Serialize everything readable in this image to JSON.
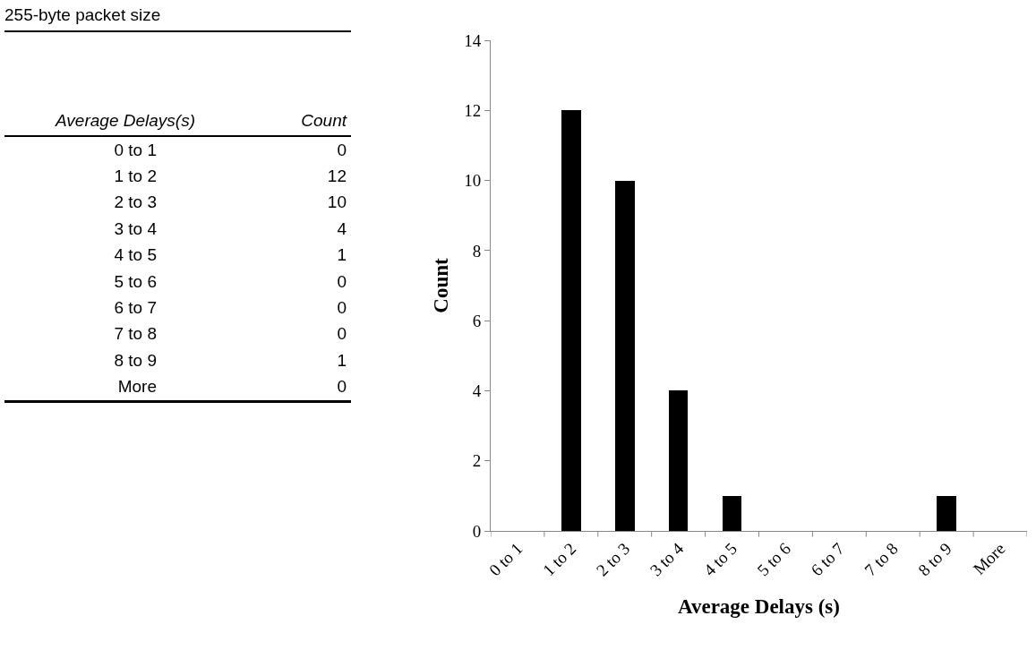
{
  "chart_data": [
    {
      "type": "other",
      "title": "255-byte packet size",
      "annotations": [
        "Average Delays(s)",
        "Count"
      ],
      "categories": [
        "0 to 1",
        "1 to 2",
        "2 to 3",
        "3 to 4",
        "4 to 5",
        "5 to 6",
        "6 to 7",
        "7 to 8",
        "8 to 9",
        "More"
      ],
      "values": [
        0,
        12,
        10,
        4,
        1,
        0,
        0,
        0,
        1,
        0
      ],
      "data_labels": true
    },
    {
      "type": "bar",
      "xlabel": "Average Delays (s)",
      "ylabel": "Count",
      "categories": [
        "0 to 1",
        "1 to 2",
        "2 to 3",
        "3 to 4",
        "4 to 5",
        "5 to 6",
        "6 to 7",
        "7 to 8",
        "8 to 9",
        "More"
      ],
      "values": [
        0,
        12,
        10,
        4,
        1,
        0,
        0,
        0,
        1,
        0
      ],
      "color": "#000000",
      "ylim": [
        0,
        14
      ],
      "yticks": [
        0,
        2,
        4,
        6,
        8,
        10,
        12,
        14
      ],
      "grid": false
    }
  ]
}
